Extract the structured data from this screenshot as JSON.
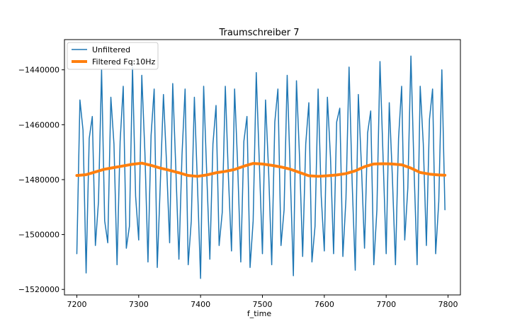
{
  "chart_data": {
    "type": "line",
    "title": "Traumschreiber 7",
    "xlabel": "f_time",
    "ylabel": "",
    "xlim": [
      7180,
      7820
    ],
    "ylim": [
      -1522000,
      -1429000
    ],
    "x_ticks": [
      7200,
      7300,
      7400,
      7500,
      7600,
      7700,
      7800
    ],
    "x_tick_labels": [
      "7200",
      "7300",
      "7400",
      "7500",
      "7600",
      "7700",
      "7800"
    ],
    "y_ticks": [
      -1440000,
      -1460000,
      -1480000,
      -1500000,
      -1520000
    ],
    "y_tick_labels": [
      "−1440000",
      "−1460000",
      "−1480000",
      "−1500000",
      "−1520000"
    ],
    "grid": false,
    "legend_position": "top-left",
    "series": [
      {
        "name": "Unfiltered",
        "color": "#1f77b4",
        "x": [
          7200,
          7205,
          7210,
          7215,
          7220,
          7225,
          7230,
          7235,
          7240,
          7245,
          7250,
          7255,
          7260,
          7265,
          7270,
          7275,
          7280,
          7285,
          7290,
          7295,
          7300,
          7305,
          7310,
          7315,
          7320,
          7325,
          7330,
          7335,
          7340,
          7345,
          7350,
          7355,
          7360,
          7365,
          7370,
          7375,
          7380,
          7385,
          7390,
          7395,
          7400,
          7405,
          7410,
          7415,
          7420,
          7425,
          7430,
          7435,
          7440,
          7445,
          7450,
          7455,
          7460,
          7465,
          7470,
          7475,
          7480,
          7485,
          7490,
          7495,
          7500,
          7505,
          7510,
          7515,
          7520,
          7525,
          7530,
          7535,
          7540,
          7545,
          7550,
          7555,
          7560,
          7565,
          7570,
          7575,
          7580,
          7585,
          7590,
          7595,
          7600,
          7605,
          7610,
          7615,
          7620,
          7625,
          7630,
          7635,
          7640,
          7645,
          7650,
          7655,
          7660,
          7665,
          7670,
          7675,
          7680,
          7685,
          7690,
          7695,
          7700,
          7705,
          7710,
          7715,
          7720,
          7725,
          7730,
          7735,
          7740,
          7745,
          7750,
          7755,
          7760,
          7765,
          7770,
          7775,
          7780,
          7785,
          7790,
          7795
        ],
        "values": [
          -1507000,
          -1451000,
          -1462000,
          -1514000,
          -1465000,
          -1457000,
          -1504000,
          -1488000,
          -1440000,
          -1495000,
          -1503000,
          -1450000,
          -1467000,
          -1511000,
          -1466000,
          -1446000,
          -1505000,
          -1497000,
          -1439000,
          -1486000,
          -1502000,
          -1442000,
          -1470000,
          -1510000,
          -1464000,
          -1447000,
          -1512000,
          -1481000,
          -1449000,
          -1474000,
          -1503000,
          -1445000,
          -1476000,
          -1509000,
          -1471000,
          -1447000,
          -1511000,
          -1495000,
          -1450000,
          -1482000,
          -1516000,
          -1446000,
          -1478000,
          -1509000,
          -1467000,
          -1453000,
          -1504000,
          -1492000,
          -1446000,
          -1479000,
          -1506000,
          -1447000,
          -1475000,
          -1510000,
          -1466000,
          -1457000,
          -1512000,
          -1495000,
          -1441000,
          -1474000,
          -1507000,
          -1451000,
          -1477000,
          -1511000,
          -1459000,
          -1447000,
          -1504000,
          -1491000,
          -1442000,
          -1478000,
          -1515000,
          -1444000,
          -1472000,
          -1508000,
          -1467000,
          -1452000,
          -1510000,
          -1497000,
          -1447000,
          -1486000,
          -1506000,
          -1450000,
          -1472000,
          -1507000,
          -1459000,
          -1454000,
          -1508000,
          -1487000,
          -1439000,
          -1481000,
          -1513000,
          -1449000,
          -1475000,
          -1505000,
          -1463000,
          -1455000,
          -1511000,
          -1491000,
          -1437000,
          -1472000,
          -1507000,
          -1452000,
          -1479000,
          -1511000,
          -1465000,
          -1446000,
          -1502000,
          -1483000,
          -1435000,
          -1476000,
          -1511000,
          -1446000,
          -1467000,
          -1504000,
          -1458000,
          -1447000,
          -1507000,
          -1488000,
          -1440000,
          -1491000
        ]
      },
      {
        "name": "Filtered Fq:10Hz",
        "color": "#ff7f0e",
        "x": [
          7200,
          7215,
          7230,
          7245,
          7260,
          7275,
          7290,
          7305,
          7320,
          7335,
          7350,
          7365,
          7380,
          7395,
          7410,
          7425,
          7440,
          7455,
          7470,
          7485,
          7500,
          7515,
          7530,
          7545,
          7560,
          7575,
          7590,
          7605,
          7620,
          7635,
          7650,
          7665,
          7680,
          7695,
          7710,
          7725,
          7740,
          7755,
          7770,
          7785,
          7795
        ],
        "values": [
          -1478500,
          -1478200,
          -1477200,
          -1476200,
          -1475600,
          -1475000,
          -1474400,
          -1474000,
          -1474800,
          -1475800,
          -1476600,
          -1477500,
          -1478500,
          -1478800,
          -1478300,
          -1477500,
          -1477000,
          -1476300,
          -1475100,
          -1474100,
          -1474300,
          -1474800,
          -1475400,
          -1476200,
          -1477400,
          -1478600,
          -1478800,
          -1478600,
          -1478300,
          -1477800,
          -1476800,
          -1475300,
          -1474300,
          -1474200,
          -1474300,
          -1474600,
          -1475800,
          -1477400,
          -1478000,
          -1478300,
          -1478400
        ]
      }
    ]
  }
}
